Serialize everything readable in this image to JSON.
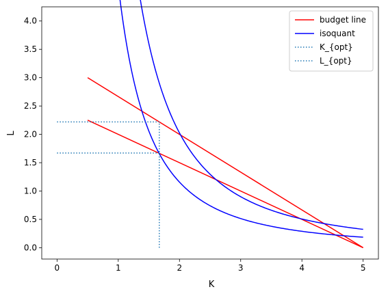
{
  "chart_data": {
    "type": "line",
    "title": "",
    "xlabel": "K",
    "ylabel": "L",
    "xlim": [
      -0.25,
      5.25
    ],
    "ylim": [
      -0.2,
      4.25
    ],
    "xticks": [
      0,
      1,
      2,
      3,
      4,
      5
    ],
    "xtick_labels": [
      "0",
      "1",
      "2",
      "3",
      "4",
      "5"
    ],
    "yticks": [
      0.0,
      0.5,
      1.0,
      1.5,
      2.0,
      2.5,
      3.0,
      3.5,
      4.0
    ],
    "ytick_labels": [
      "0.0",
      "0.5",
      "1.0",
      "1.5",
      "2.0",
      "2.5",
      "3.0",
      "3.5",
      "4.0"
    ],
    "grid": false,
    "legend_position": "top-right",
    "legend": [
      {
        "label": "budget line",
        "color": "#ff0000",
        "style": "solid"
      },
      {
        "label": "isoquant",
        "color": "#0000ff",
        "style": "solid"
      },
      {
        "label": "K_{opt}",
        "color": "#1f77b4",
        "style": "dotted"
      },
      {
        "label": "L_{opt}",
        "color": "#1f77b4",
        "style": "dotted"
      }
    ],
    "series": [
      {
        "kind": "budget",
        "color": "#ff0000",
        "x": [
          0.5,
          5
        ],
        "y": [
          3.0,
          0.0
        ]
      },
      {
        "kind": "budget",
        "color": "#ff0000",
        "x": [
          0.5,
          5
        ],
        "y": [
          2.25,
          0.0
        ]
      },
      {
        "kind": "isoquant",
        "color": "#0000ff",
        "k_squared_l": 8.1,
        "x_range": [
          0.5,
          5
        ]
      },
      {
        "kind": "isoquant",
        "color": "#0000ff",
        "k_squared_l": 4.63,
        "x_range": [
          0.5,
          5
        ]
      }
    ],
    "k_opt_line": {
      "x": 1.67,
      "y_range": [
        0,
        2.22
      ],
      "color": "#1f77b4"
    },
    "l_opt_lines": [
      {
        "y": 2.22,
        "x_range": [
          0,
          1.67
        ],
        "color": "#1f77b4"
      },
      {
        "y": 1.67,
        "x_range": [
          0,
          1.67
        ],
        "color": "#1f77b4"
      }
    ]
  }
}
